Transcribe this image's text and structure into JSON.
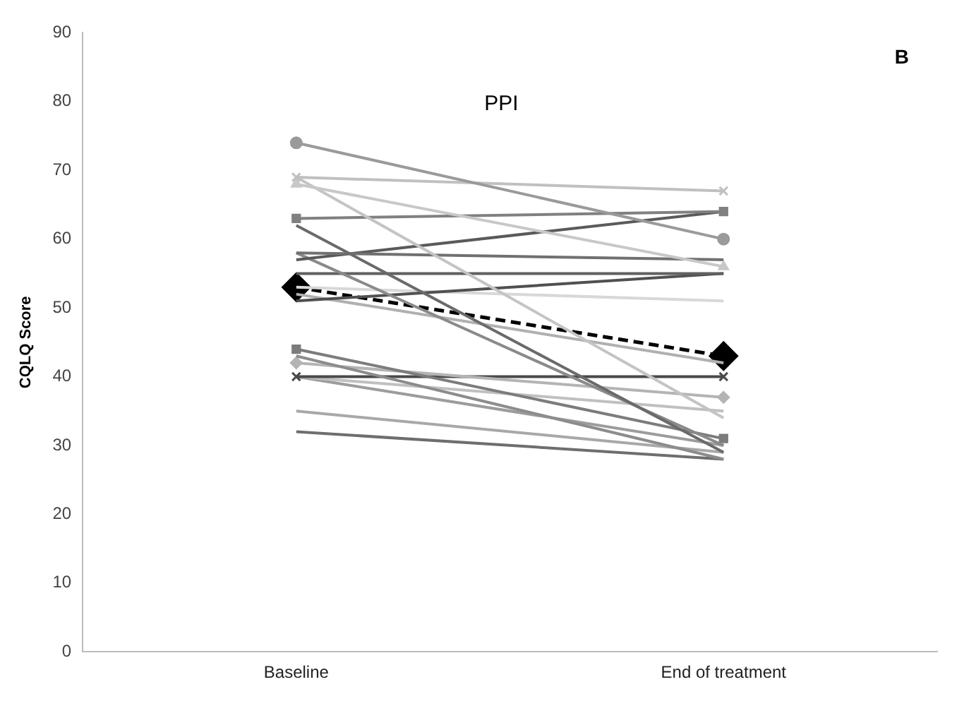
{
  "chart_data": {
    "type": "line",
    "title": "PPI",
    "ylabel": "CQLQ Score",
    "categories": [
      "Baseline",
      "End of treatment"
    ],
    "ylim": [
      0,
      90
    ],
    "yticks": [
      0,
      10,
      20,
      30,
      40,
      50,
      60,
      70,
      80,
      90
    ],
    "grid": false,
    "legend": false,
    "annotations": [
      "B"
    ],
    "series": [
      {
        "color": "#9a9a9a",
        "marker": "circle",
        "values": [
          74,
          60
        ]
      },
      {
        "color": "#c0c0c0",
        "marker": "cross",
        "values": [
          69,
          67
        ]
      },
      {
        "color": "#c8c8c8",
        "marker": "triangle",
        "values": [
          68,
          56
        ]
      },
      {
        "color": "#c4c4c4",
        "marker": "none",
        "values": [
          69,
          34
        ]
      },
      {
        "color": "#808080",
        "marker": "square",
        "values": [
          63,
          64
        ]
      },
      {
        "color": "#6a6a6a",
        "marker": "none",
        "values": [
          62,
          29
        ]
      },
      {
        "color": "#707070",
        "marker": "none",
        "values": [
          58,
          57
        ]
      },
      {
        "color": "#5a5a5a",
        "marker": "none",
        "values": [
          57,
          64
        ]
      },
      {
        "color": "#8a8a8a",
        "marker": "none",
        "values": [
          58,
          30
        ]
      },
      {
        "color": "#606060",
        "marker": "none",
        "values": [
          55,
          55
        ]
      },
      {
        "color": "#505050",
        "marker": "none",
        "values": [
          51,
          55
        ]
      },
      {
        "color": "#d8d8d8",
        "marker": "none",
        "values": [
          53,
          51
        ]
      },
      {
        "color": "#b0b0b0",
        "marker": "none",
        "values": [
          52,
          42
        ]
      },
      {
        "color": "#7c7c7c",
        "marker": "square",
        "values": [
          44,
          31
        ]
      },
      {
        "color": "#8c8c8c",
        "marker": "none",
        "values": [
          43,
          28
        ]
      },
      {
        "color": "#b4b4b4",
        "marker": "diamond",
        "values": [
          42,
          37
        ]
      },
      {
        "color": "#4a4a4a",
        "marker": "cross",
        "values": [
          40,
          40
        ]
      },
      {
        "color": "#c0c0c0",
        "marker": "none",
        "values": [
          40,
          35
        ]
      },
      {
        "color": "#9c9c9c",
        "marker": "none",
        "values": [
          40,
          30
        ]
      },
      {
        "color": "#a8a8a8",
        "marker": "none",
        "values": [
          35,
          29
        ]
      },
      {
        "color": "#6e6e6e",
        "marker": "none",
        "values": [
          32,
          28
        ]
      },
      {
        "color": "#000000",
        "marker": "diamond",
        "line_style": "dashed",
        "values": [
          53,
          43
        ]
      }
    ]
  }
}
